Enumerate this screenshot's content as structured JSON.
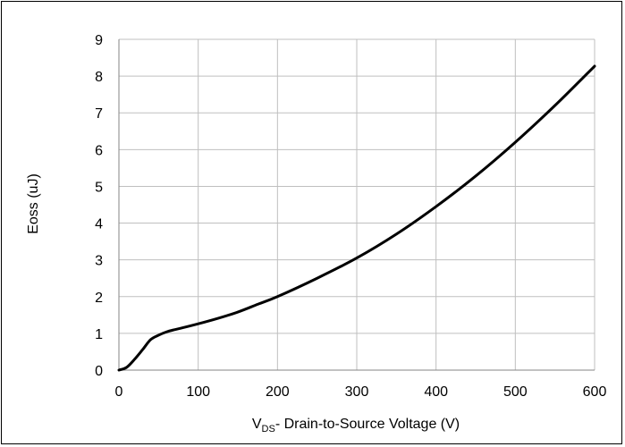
{
  "chart_data": {
    "type": "line",
    "title": "",
    "xlabel": {
      "main": "V",
      "subscript": "DS",
      "rest": "- Drain-to-Source Voltage (V)"
    },
    "ylabel": "Eoss (uJ)",
    "xlim": [
      0,
      600
    ],
    "ylim": [
      0,
      9
    ],
    "xticks": [
      0,
      100,
      200,
      300,
      400,
      500,
      600
    ],
    "yticks": [
      0,
      1,
      2,
      3,
      4,
      5,
      6,
      7,
      8,
      9
    ],
    "grid": true,
    "legend": "none",
    "line_color": "#000000",
    "grid_color": "#bfbfbf",
    "series": [
      {
        "x": [
          0,
          10,
          20,
          30,
          40,
          50,
          60,
          70,
          80,
          100,
          125,
          150,
          175,
          200,
          250,
          300,
          350,
          400,
          450,
          500,
          550,
          600
        ],
        "values": [
          0.0,
          0.08,
          0.3,
          0.56,
          0.83,
          0.95,
          1.04,
          1.1,
          1.15,
          1.26,
          1.41,
          1.58,
          1.79,
          2.0,
          2.5,
          3.05,
          3.7,
          4.45,
          5.28,
          6.2,
          7.2,
          8.27
        ]
      }
    ]
  }
}
